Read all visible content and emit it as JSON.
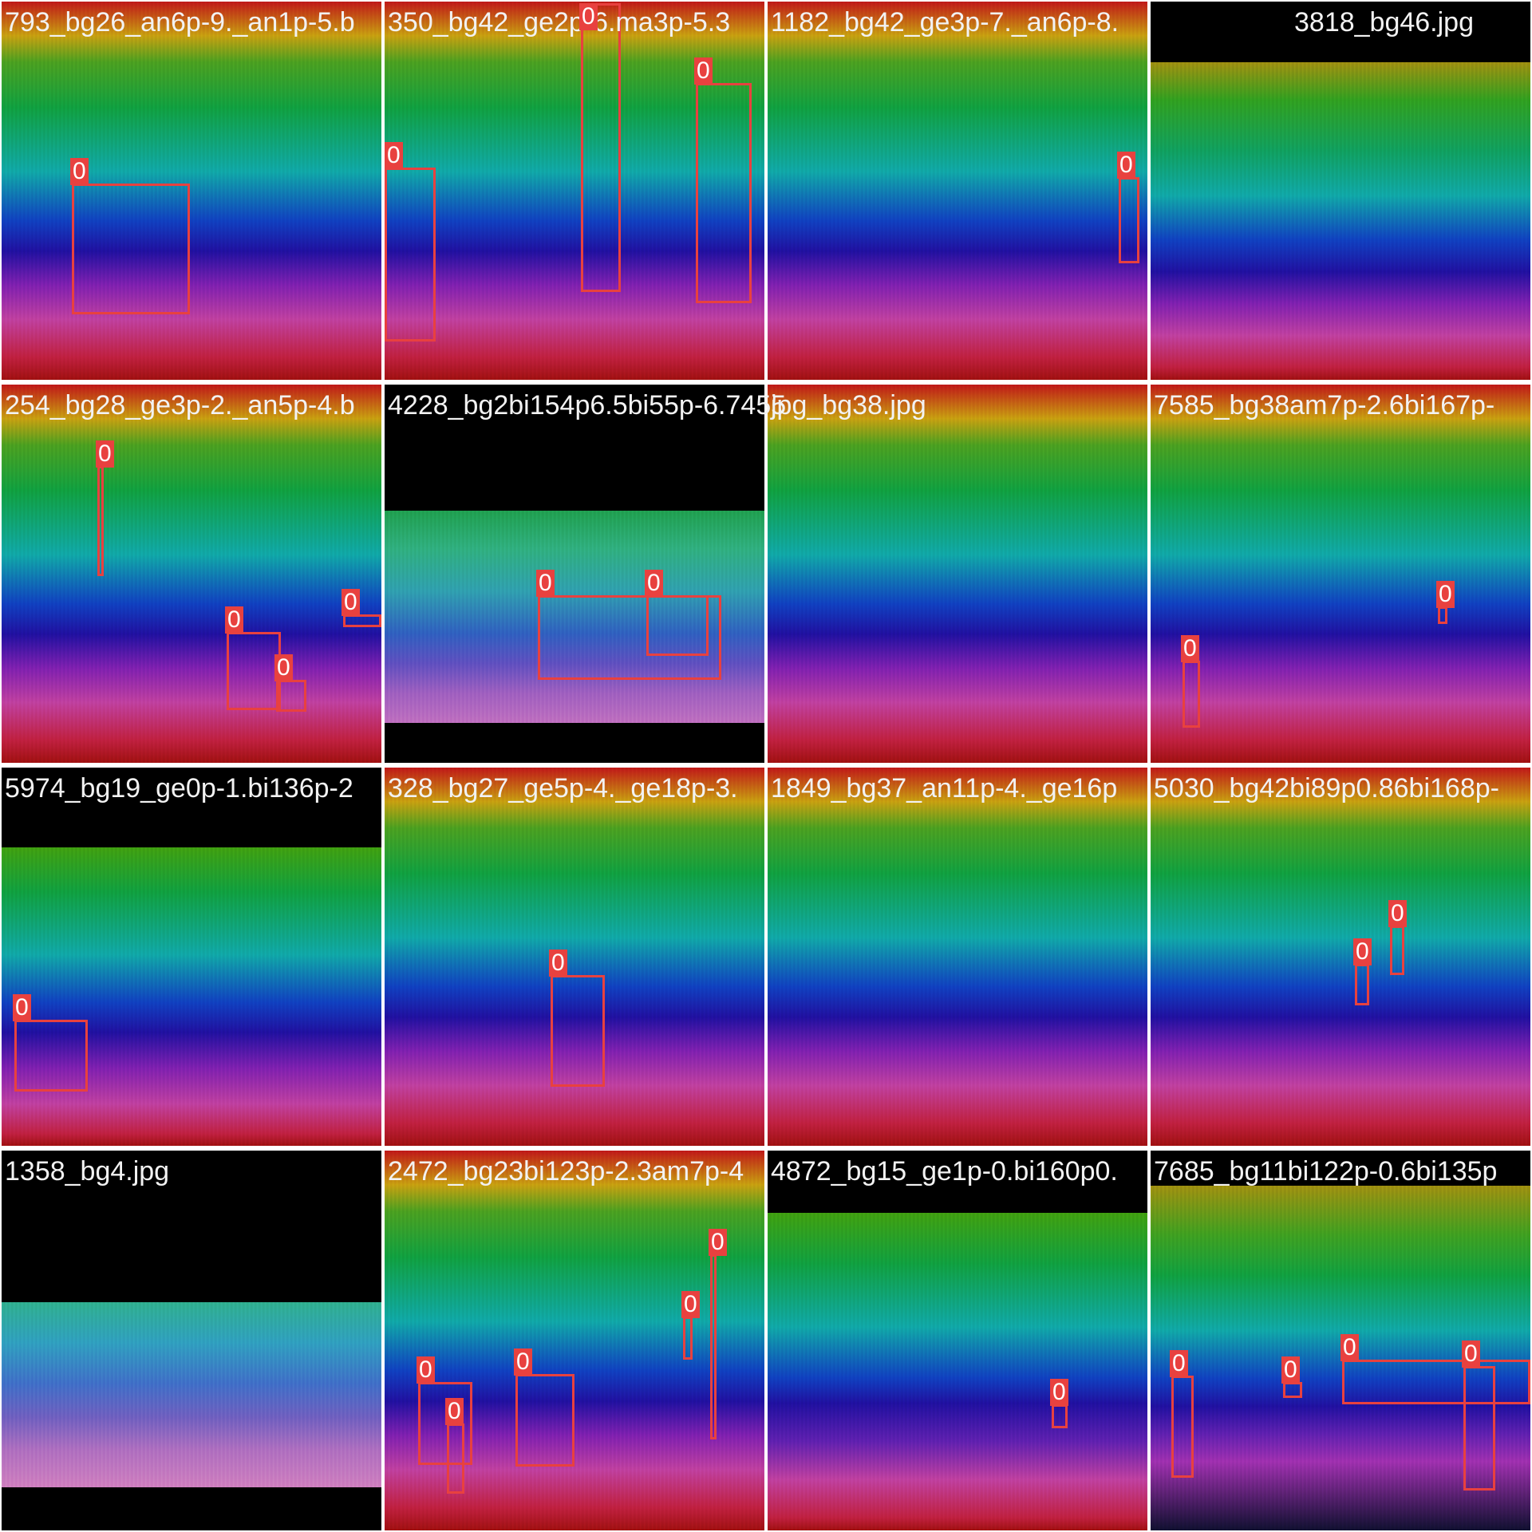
{
  "tiles": [
    {
      "filename": "793_bg26_an6p-9._an1p-5.b",
      "boxes": [
        {
          "label": "0"
        }
      ]
    },
    {
      "filename": "350_bg42_ge2p-6.ma3p-5.3",
      "boxes": [
        {
          "label": "0"
        },
        {
          "label": "0"
        },
        {
          "label": "0"
        }
      ]
    },
    {
      "filename": "1182_bg42_ge3p-7._an6p-8.",
      "boxes": [
        {
          "label": "0"
        }
      ]
    },
    {
      "filename": "3818_bg46.jpg",
      "boxes": []
    },
    {
      "filename": "254_bg28_ge3p-2._an5p-4.b",
      "boxes": [
        {
          "label": "0"
        },
        {
          "label": "0"
        },
        {
          "label": "0"
        },
        {
          "label": "0"
        }
      ]
    },
    {
      "filename": "4228_bg2bi154p6.5bi55p-6.7455",
      "boxes": [
        {
          "label": "0"
        },
        {
          "label": "0"
        }
      ]
    },
    {
      "filename": "jpg_bg38.jpg",
      "boxes": []
    },
    {
      "filename": "7585_bg38am7p-2.6bi167p-",
      "boxes": [
        {
          "label": "0"
        },
        {
          "label": "0"
        }
      ]
    },
    {
      "filename": "5974_bg19_ge0p-1.bi136p-2",
      "boxes": [
        {
          "label": "0"
        }
      ]
    },
    {
      "filename": "328_bg27_ge5p-4._ge18p-3.",
      "boxes": [
        {
          "label": "0"
        }
      ]
    },
    {
      "filename": "1849_bg37_an11p-4._ge16p",
      "boxes": []
    },
    {
      "filename": "5030_bg42bi89p0.86bi168p-",
      "boxes": [
        {
          "label": "0"
        },
        {
          "label": "0"
        }
      ]
    },
    {
      "filename": "1358_bg4.jpg",
      "boxes": []
    },
    {
      "filename": "2472_bg23bi123p-2.3am7p-4",
      "boxes": [
        {
          "label": "0"
        },
        {
          "label": "0"
        },
        {
          "label": "0"
        },
        {
          "label": "0"
        },
        {
          "label": "0"
        }
      ]
    },
    {
      "filename": "4872_bg15_ge1p-0.bi160p0.",
      "boxes": [
        {
          "label": "0"
        }
      ]
    },
    {
      "filename": "7685_bg11bi122p-0.6bi135p",
      "boxes": [
        {
          "label": "0"
        },
        {
          "label": "0"
        },
        {
          "label": "0"
        },
        {
          "label": "0"
        }
      ]
    }
  ]
}
